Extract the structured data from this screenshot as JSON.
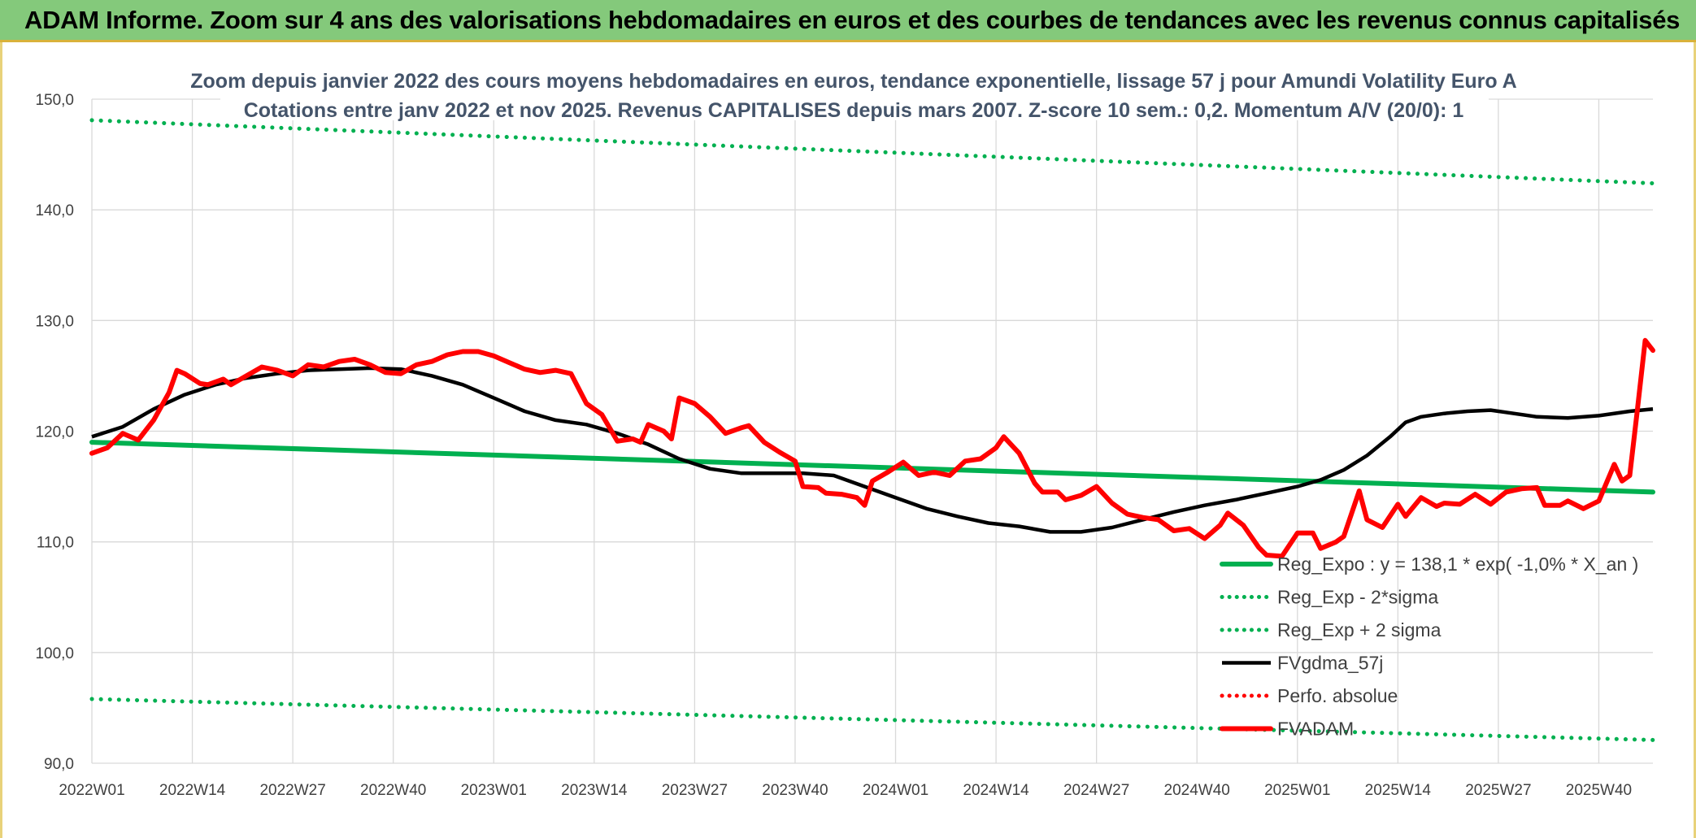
{
  "banner": {
    "title": "ADAM Informe. Zoom sur 4 ans des valorisations hebdomadaires en euros et des courbes de tendances avec les revenus connus capitalisés"
  },
  "colors": {
    "banner_bg": "#84c97b",
    "regression": "#00b050",
    "smoothed": "#000000",
    "price": "#ff0000",
    "perfo": "#ff0000"
  },
  "chart_data": {
    "type": "line",
    "title": "Zoom depuis janvier 2022 des cours moyens hebdomadaires en euros, tendance exponentielle, lissage 57 j pour Amundi Volatility Euro A",
    "subtitle": "Cotations entre janv 2022 et nov 2025. Revenus CAPITALISES depuis mars 2007. Z-score 10 sem.: 0,2. Momentum A/V (20/0): 1",
    "xlabel": "",
    "ylabel": "",
    "ylim": [
      90,
      150
    ],
    "yticks": [
      "90,0",
      "100,0",
      "110,0",
      "120,0",
      "130,0",
      "140,0",
      "150,0"
    ],
    "x_range": [
      1,
      203
    ],
    "xticks": [
      {
        "label": "2022W01",
        "x": 1
      },
      {
        "label": "2022W14",
        "x": 14
      },
      {
        "label": "2022W27",
        "x": 27
      },
      {
        "label": "2022W40",
        "x": 40
      },
      {
        "label": "2023W01",
        "x": 53
      },
      {
        "label": "2023W14",
        "x": 66
      },
      {
        "label": "2023W27",
        "x": 79
      },
      {
        "label": "2023W40",
        "x": 92
      },
      {
        "label": "2024W01",
        "x": 105
      },
      {
        "label": "2024W14",
        "x": 118
      },
      {
        "label": "2024W27",
        "x": 131
      },
      {
        "label": "2024W40",
        "x": 144
      },
      {
        "label": "2025W01",
        "x": 157
      },
      {
        "label": "2025W14",
        "x": 170
      },
      {
        "label": "2025W27",
        "x": 183
      },
      {
        "label": "2025W40",
        "x": 196
      }
    ],
    "grid": true,
    "legend_position": "bottom-right",
    "series": [
      {
        "name": "Reg_Expo : y = 138,1 * exp( -1,0% *  X_an )",
        "style": "solid",
        "color": "#00b050",
        "points": [
          [
            1,
            119.0
          ],
          [
            203,
            114.5
          ]
        ]
      },
      {
        "name": "Reg_Exp - 2*sigma",
        "style": "dotted",
        "color": "#00b050",
        "points": [
          [
            1,
            95.8
          ],
          [
            203,
            92.1
          ]
        ]
      },
      {
        "name": "Reg_Exp + 2 sigma",
        "style": "dotted",
        "color": "#00b050",
        "points": [
          [
            1,
            148.1
          ],
          [
            203,
            142.4
          ]
        ]
      },
      {
        "name": "FVgdma_57j",
        "style": "solid",
        "color": "#000000",
        "points": [
          [
            1,
            119.5
          ],
          [
            5,
            120.4
          ],
          [
            9,
            122.0
          ],
          [
            13,
            123.3
          ],
          [
            17,
            124.2
          ],
          [
            21,
            124.8
          ],
          [
            25,
            125.2
          ],
          [
            29,
            125.5
          ],
          [
            33,
            125.6
          ],
          [
            37,
            125.7
          ],
          [
            41,
            125.6
          ],
          [
            45,
            125.0
          ],
          [
            49,
            124.2
          ],
          [
            53,
            123.0
          ],
          [
            57,
            121.8
          ],
          [
            61,
            121.0
          ],
          [
            65,
            120.6
          ],
          [
            69,
            119.8
          ],
          [
            73,
            118.8
          ],
          [
            77,
            117.5
          ],
          [
            81,
            116.6
          ],
          [
            85,
            116.2
          ],
          [
            89,
            116.2
          ],
          [
            93,
            116.2
          ],
          [
            97,
            116.0
          ],
          [
            101,
            115.0
          ],
          [
            105,
            114.0
          ],
          [
            109,
            113.0
          ],
          [
            113,
            112.3
          ],
          [
            117,
            111.7
          ],
          [
            121,
            111.4
          ],
          [
            125,
            110.9
          ],
          [
            129,
            110.9
          ],
          [
            133,
            111.3
          ],
          [
            137,
            112.0
          ],
          [
            141,
            112.7
          ],
          [
            145,
            113.3
          ],
          [
            149,
            113.8
          ],
          [
            153,
            114.4
          ],
          [
            157,
            115.0
          ],
          [
            160,
            115.6
          ],
          [
            163,
            116.5
          ],
          [
            166,
            117.8
          ],
          [
            169,
            119.5
          ],
          [
            171,
            120.8
          ],
          [
            173,
            121.3
          ],
          [
            176,
            121.6
          ],
          [
            179,
            121.8
          ],
          [
            182,
            121.9
          ],
          [
            185,
            121.6
          ],
          [
            188,
            121.3
          ],
          [
            192,
            121.2
          ],
          [
            196,
            121.4
          ],
          [
            200,
            121.8
          ],
          [
            203,
            122.0
          ]
        ]
      },
      {
        "name": "Perfo. absolue",
        "style": "dotted",
        "color": "#ff0000",
        "points": []
      },
      {
        "name": "FVADAM",
        "style": "solid-thick",
        "color": "#ff0000",
        "points": [
          [
            1,
            118.0
          ],
          [
            3,
            118.5
          ],
          [
            5,
            119.8
          ],
          [
            7,
            119.2
          ],
          [
            9,
            121.0
          ],
          [
            11,
            123.5
          ],
          [
            12,
            125.5
          ],
          [
            13,
            125.2
          ],
          [
            15,
            124.3
          ],
          [
            16,
            124.2
          ],
          [
            18,
            124.7
          ],
          [
            19,
            124.2
          ],
          [
            21,
            125.0
          ],
          [
            23,
            125.8
          ],
          [
            25,
            125.5
          ],
          [
            27,
            125.0
          ],
          [
            29,
            126.0
          ],
          [
            31,
            125.8
          ],
          [
            33,
            126.3
          ],
          [
            35,
            126.5
          ],
          [
            37,
            126.0
          ],
          [
            39,
            125.3
          ],
          [
            41,
            125.2
          ],
          [
            43,
            126.0
          ],
          [
            45,
            126.3
          ],
          [
            47,
            126.9
          ],
          [
            49,
            127.2
          ],
          [
            51,
            127.2
          ],
          [
            53,
            126.8
          ],
          [
            55,
            126.2
          ],
          [
            57,
            125.6
          ],
          [
            59,
            125.3
          ],
          [
            61,
            125.5
          ],
          [
            63,
            125.2
          ],
          [
            65,
            122.5
          ],
          [
            67,
            121.5
          ],
          [
            69,
            119.1
          ],
          [
            71,
            119.3
          ],
          [
            72,
            119.0
          ],
          [
            73,
            120.6
          ],
          [
            75,
            120.0
          ],
          [
            76,
            119.3
          ],
          [
            77,
            123.0
          ],
          [
            79,
            122.5
          ],
          [
            81,
            121.3
          ],
          [
            83,
            119.8
          ],
          [
            85,
            120.3
          ],
          [
            86,
            120.5
          ],
          [
            88,
            119.0
          ],
          [
            90,
            118.1
          ],
          [
            92,
            117.3
          ],
          [
            93,
            115.0
          ],
          [
            95,
            114.9
          ],
          [
            96,
            114.4
          ],
          [
            98,
            114.3
          ],
          [
            100,
            114.0
          ],
          [
            101,
            113.3
          ],
          [
            102,
            115.5
          ],
          [
            104,
            116.3
          ],
          [
            106,
            117.2
          ],
          [
            108,
            116.0
          ],
          [
            110,
            116.3
          ],
          [
            112,
            116.0
          ],
          [
            114,
            117.3
          ],
          [
            116,
            117.5
          ],
          [
            118,
            118.5
          ],
          [
            119,
            119.5
          ],
          [
            121,
            118.0
          ],
          [
            123,
            115.3
          ],
          [
            124,
            114.5
          ],
          [
            126,
            114.5
          ],
          [
            127,
            113.8
          ],
          [
            129,
            114.2
          ],
          [
            131,
            115.0
          ],
          [
            133,
            113.5
          ],
          [
            135,
            112.5
          ],
          [
            137,
            112.2
          ],
          [
            139,
            112.0
          ],
          [
            141,
            111.0
          ],
          [
            143,
            111.2
          ],
          [
            145,
            110.3
          ],
          [
            147,
            111.5
          ],
          [
            148,
            112.6
          ],
          [
            150,
            111.5
          ],
          [
            152,
            109.5
          ],
          [
            153,
            108.8
          ],
          [
            155,
            108.7
          ],
          [
            157,
            110.8
          ],
          [
            159,
            110.8
          ],
          [
            160,
            109.4
          ],
          [
            162,
            110.0
          ],
          [
            163,
            110.5
          ],
          [
            165,
            114.6
          ],
          [
            166,
            112.0
          ],
          [
            168,
            111.3
          ],
          [
            170,
            113.4
          ],
          [
            171,
            112.3
          ],
          [
            173,
            114.0
          ],
          [
            175,
            113.2
          ],
          [
            176,
            113.5
          ],
          [
            178,
            113.4
          ],
          [
            180,
            114.3
          ],
          [
            182,
            113.4
          ],
          [
            184,
            114.5
          ],
          [
            186,
            114.8
          ],
          [
            188,
            114.9
          ],
          [
            189,
            113.3
          ],
          [
            191,
            113.3
          ],
          [
            192,
            113.7
          ],
          [
            194,
            113.0
          ],
          [
            196,
            113.7
          ],
          [
            198,
            117.0
          ],
          [
            199,
            115.5
          ],
          [
            200,
            116.0
          ],
          [
            201,
            122.0
          ],
          [
            202,
            128.2
          ],
          [
            203,
            127.3
          ]
        ]
      }
    ]
  }
}
